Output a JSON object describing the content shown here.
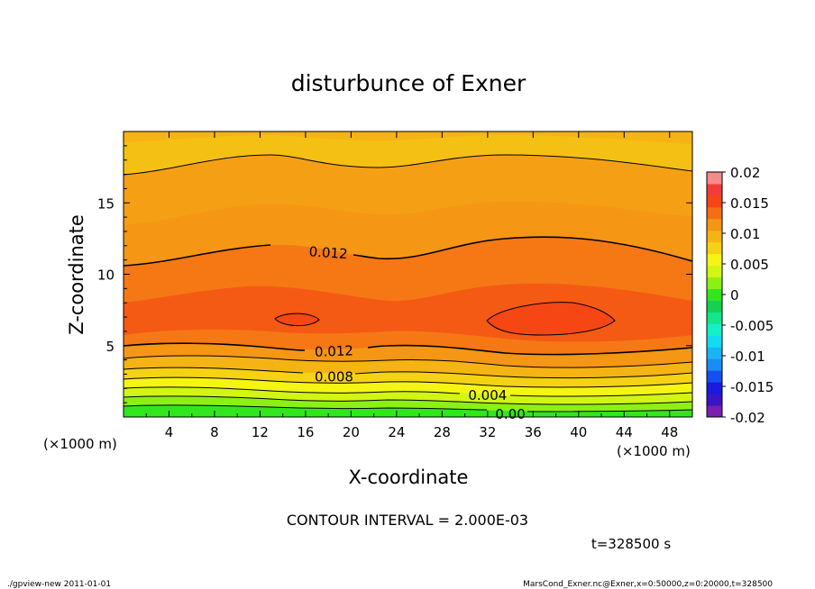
{
  "chart_data": {
    "type": "contour",
    "title": "disturbunce of Exner",
    "xlabel": "X-coordinate",
    "ylabel": "Z-coordinate",
    "x_unit": "(×1000 m)",
    "y_unit": "(×1000 m)",
    "xlim": [
      0,
      50
    ],
    "ylim": [
      0,
      20
    ],
    "x_ticks": [
      4,
      8,
      12,
      16,
      20,
      24,
      28,
      32,
      36,
      40,
      44,
      48
    ],
    "y_ticks": [
      5,
      10,
      15
    ],
    "contour_interval_text": "CONTOUR INTERVAL = 2.000E-03",
    "time_text": "t=328500 s",
    "contour_labels": [
      {
        "text": "0.012",
        "x": 18,
        "z": 11.5
      },
      {
        "text": "0.012",
        "x": 18.5,
        "z": 4.6
      },
      {
        "text": "0.008",
        "x": 18.5,
        "z": 2.8
      },
      {
        "text": "0.004",
        "x": 32,
        "z": 1.5
      },
      {
        "text": "0.00",
        "x": 34,
        "z": 0.2
      }
    ],
    "colorbar": {
      "levels": [
        -0.02,
        -0.018,
        -0.016,
        -0.014,
        -0.012,
        -0.01,
        -0.008,
        -0.006,
        -0.004,
        -0.002,
        0,
        0.002,
        0.004,
        0.006,
        0.008,
        0.01,
        0.012,
        0.014,
        0.016,
        0.018,
        0.02
      ],
      "colors": [
        "#7a1fb0",
        "#3c14c8",
        "#1a1ae0",
        "#1450f0",
        "#1a8cf5",
        "#1ab4f5",
        "#14dcf0",
        "#14f0c8",
        "#14e68c",
        "#14d250",
        "#32e61e",
        "#8cf014",
        "#d2f514",
        "#f5f514",
        "#f5d214",
        "#f5b414",
        "#f59614",
        "#f56e14",
        "#f54614",
        "#f53c3c",
        "#f58c8c"
      ],
      "tick_labels": [
        "0.02",
        "0.015",
        "0.01",
        "0.005",
        "0",
        "-0.005",
        "-0.01",
        "-0.015",
        "-0.02"
      ]
    }
  },
  "footer": {
    "left": "./gpview-new  2011-01-01",
    "right": "MarsCond_Exner.nc@Exner,x=0:50000,z=0:20000,t=328500"
  }
}
